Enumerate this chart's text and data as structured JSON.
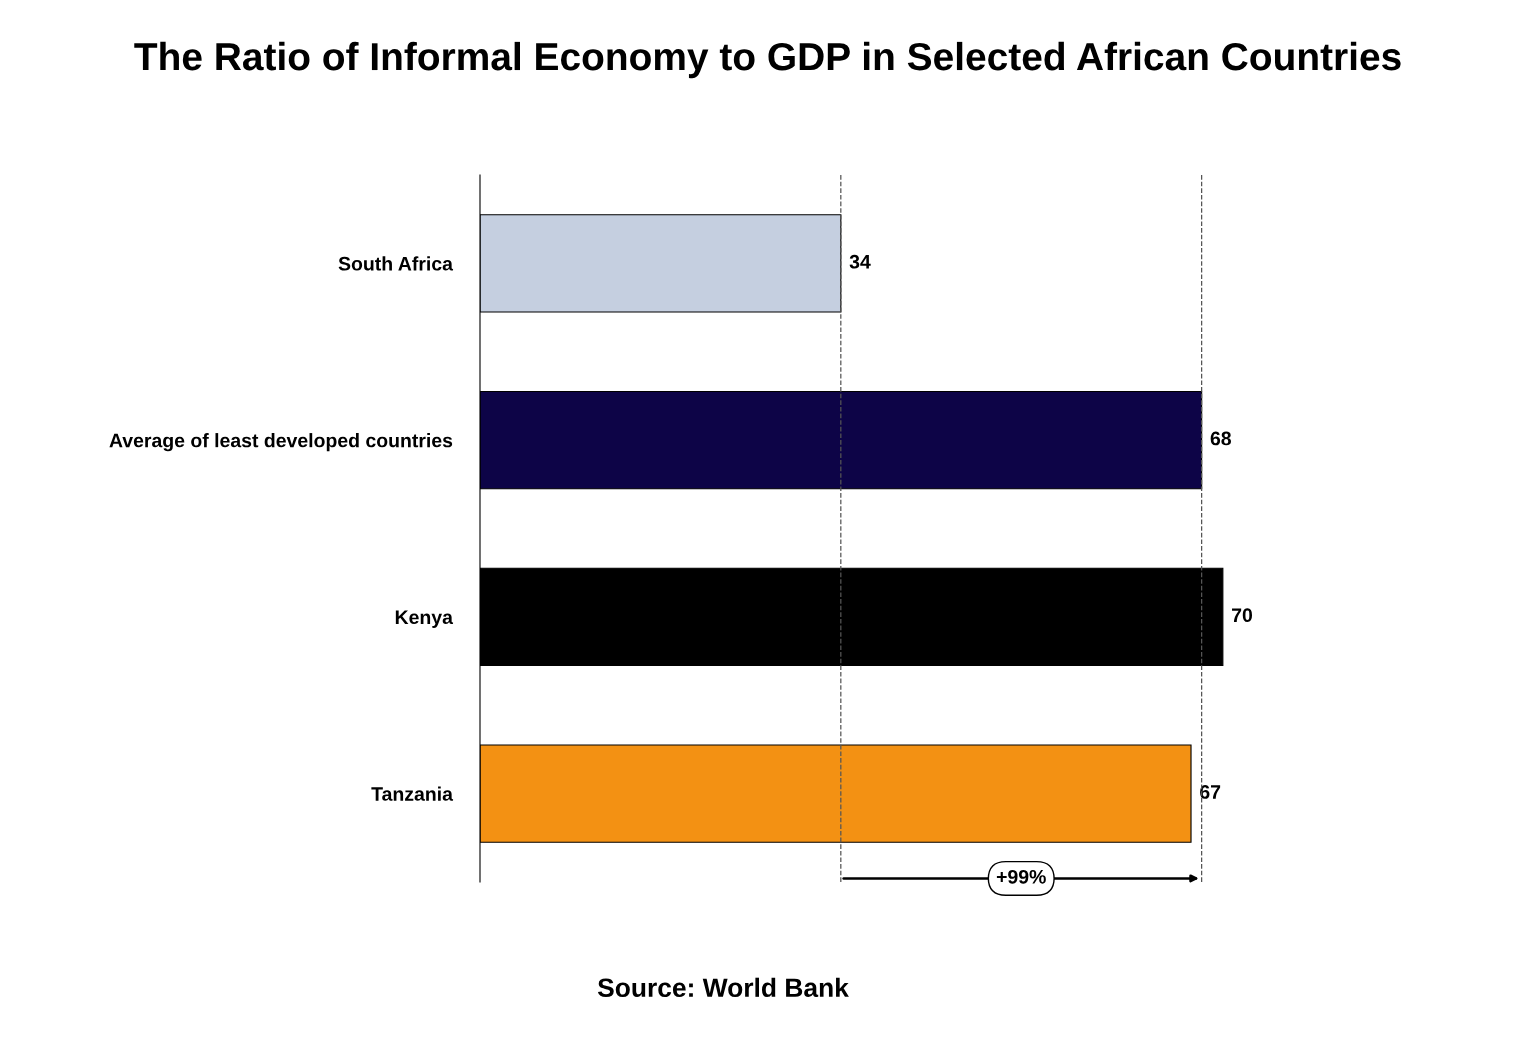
{
  "chart_data": {
    "type": "bar",
    "orientation": "horizontal",
    "title": "The Ratio of Informal Economy to GDP in Selected African Countries",
    "categories": [
      "South Africa",
      "Average of least developed countries",
      "Kenya",
      "Tanzania"
    ],
    "values": [
      34,
      68,
      70,
      67
    ],
    "colors": [
      "#c5cfe0",
      "#0d0447",
      "#000000",
      "#f39113"
    ],
    "data_labels": true,
    "tick_labels": "y",
    "grid": false,
    "legend": false,
    "ref_lines": [
      {
        "axis": "x",
        "value": 34,
        "label": null,
        "line_style": "dashed",
        "color": "#555555"
      },
      {
        "axis": "x",
        "value": 68,
        "label": null,
        "line_style": "dashed",
        "color": "#555555"
      }
    ],
    "annotations": [
      "+99%",
      "Source: World Bank"
    ]
  }
}
